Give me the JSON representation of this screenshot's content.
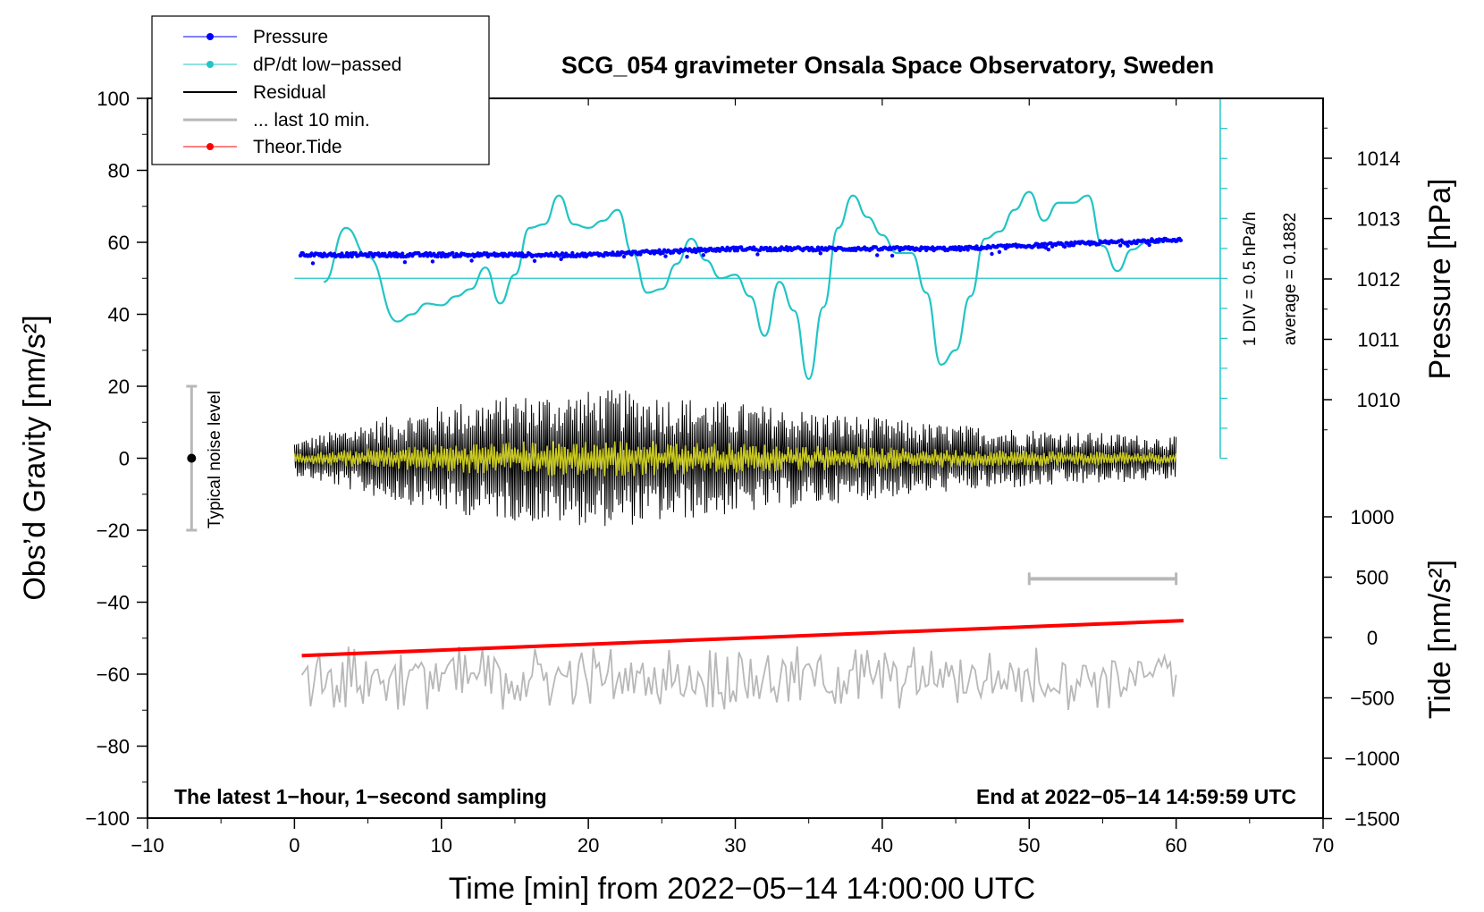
{
  "chart_data": {
    "type": "line",
    "title": "SCG_054 gravimeter Onsala Space Observatory, Sweden",
    "xlabel": "Time [min] from 2022−05−14 14:00:00 UTC",
    "ylabel_left": "Obs’d Gravity [nm/s²]",
    "ylabel_right_top": "Pressure [hPa]",
    "ylabel_right_bottom": "Tide [nm/s²]",
    "xlim": [
      -10,
      70
    ],
    "ylim": [
      -100,
      100
    ],
    "x_ticks": [
      "−10",
      "0",
      "10",
      "20",
      "30",
      "40",
      "50",
      "60",
      "70"
    ],
    "y_ticks": [
      "−100",
      "−80",
      "−60",
      "−40",
      "−20",
      "0",
      "20",
      "40",
      "60",
      "80",
      "100"
    ],
    "pressure_ticks": [
      "1010",
      "1011",
      "1012",
      "1013",
      "1014"
    ],
    "tide_ticks": [
      "1000",
      "500",
      "0",
      "−500",
      "−1000",
      "−1500"
    ],
    "legend": [
      {
        "label": "Pressure",
        "color": "#0000ff"
      },
      {
        "label": "dP/dt low−passed",
        "color": "#22c4c4"
      },
      {
        "label": "Residual",
        "color": "#000000"
      },
      {
        "label": "... last 10 min.",
        "color": "#b8b8b8"
      },
      {
        "label": "Theor.Tide",
        "color": "#ff0000"
      }
    ],
    "annotations": {
      "bottom_left": "The latest 1−hour, 1−second sampling",
      "bottom_right": "End at 2022−05−14 14:59:59 UTC",
      "noise": "Typical noise level",
      "div": "1 DIV = 0.5 hPa/h",
      "average": "average = 0.1882"
    },
    "series": [
      {
        "name": "Pressure",
        "units": "hPa",
        "x": [
          0.5,
          5,
          10,
          15,
          20,
          25,
          30,
          35,
          40,
          45,
          50,
          55,
          60
        ],
        "values": [
          1012.4,
          1012.4,
          1012.4,
          1012.4,
          1012.4,
          1012.45,
          1012.5,
          1012.5,
          1012.5,
          1012.5,
          1012.55,
          1012.6,
          1012.65
        ]
      },
      {
        "name": "dP/dt low−passed",
        "units": "nm/s² scaled",
        "x": [
          2,
          3.5,
          5,
          7,
          8,
          9,
          10,
          11,
          12,
          13,
          14,
          15,
          16,
          17,
          18,
          19,
          20,
          21,
          22,
          23,
          24,
          25,
          26,
          27,
          28,
          29,
          30,
          31,
          32,
          33,
          34,
          35,
          36,
          37,
          38,
          39,
          40,
          41,
          42,
          43,
          44,
          45,
          46,
          47,
          48,
          49,
          50,
          51,
          52,
          53,
          54,
          55,
          56,
          57,
          58,
          59
        ],
        "values": [
          49,
          64,
          56,
          38,
          40,
          43,
          42.5,
          45,
          47,
          53,
          43,
          51,
          64,
          65,
          73,
          65,
          64,
          66,
          69,
          57,
          46,
          47,
          54,
          61,
          55,
          50,
          51,
          45,
          34,
          49,
          41,
          22,
          42,
          64,
          73,
          67,
          62,
          57,
          57,
          46,
          26,
          30,
          45,
          61,
          63,
          69,
          74,
          66,
          71,
          71,
          73,
          59,
          52,
          58,
          60,
          60
        ],
        "baseline": 50
      },
      {
        "name": "Residual",
        "units": "nm/s²",
        "x": [
          0,
          60
        ],
        "amplitude_envelope": [
          4,
          9,
          13,
          15,
          16,
          14,
          12,
          10,
          8,
          7,
          6,
          5
        ]
      },
      {
        "name": "... last 10 min.",
        "units": "nm/s²",
        "x": [
          50,
          60
        ],
        "baseline": -61
      },
      {
        "name": "Theor.Tide",
        "units": "nm/s²",
        "x": [
          0.5,
          60.5
        ],
        "values": [
          -150,
          140
        ]
      }
    ]
  }
}
